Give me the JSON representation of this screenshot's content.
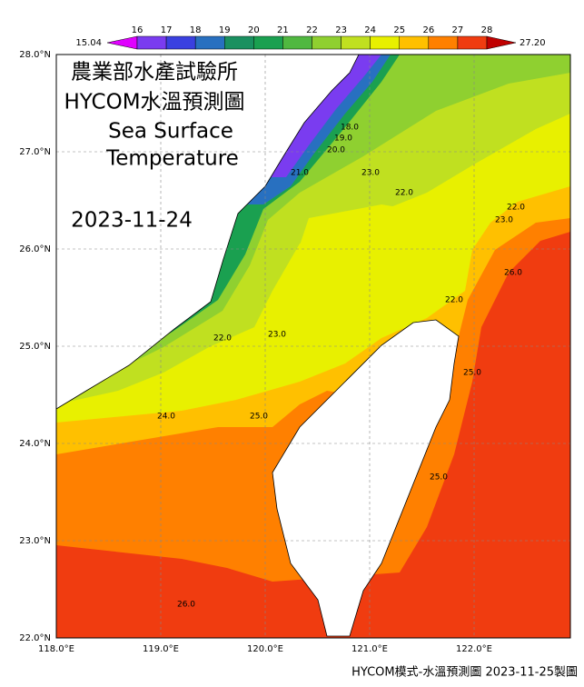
{
  "header": {
    "title_lines": [
      "農業部水產試驗所",
      "HYCOM水溫預測圖",
      "Sea Surface",
      "Temperature"
    ],
    "date": "2023-11-24"
  },
  "colorbar": {
    "levels": [
      16,
      17,
      18,
      19,
      20,
      21,
      22,
      23,
      24,
      25,
      26,
      27,
      28
    ],
    "min": 15.04,
    "max": {
      "value": 27.2,
      "label": "27.20"
    },
    "colors": [
      "#e000ff",
      "#7a3cf0",
      "#3a40e0",
      "#2870c0",
      "#1a9060",
      "#1aa050",
      "#50b840",
      "#8fd030",
      "#c0e020",
      "#e8f000",
      "#ffc000",
      "#ff8000",
      "#f03c10",
      "#c00000"
    ]
  },
  "axes": {
    "lat_ticks": [
      "28.0°N",
      "27.0°N",
      "26.0°N",
      "25.0°N",
      "24.0°N",
      "23.0°N",
      "22.0°N"
    ],
    "lon_ticks": [
      "118.0°E",
      "119.0°E",
      "120.0°E",
      "121.0°E",
      "122.0°E"
    ]
  },
  "contour_labels": [
    "21.0",
    "22.0",
    "23.0",
    "23.0",
    "22.0",
    "23.0",
    "22.0",
    "24.0",
    "25.0",
    "25.0",
    "26.0",
    "25.0",
    "26.0",
    "22.0",
    "20.0",
    "19.0",
    "18.0"
  ],
  "footer": "HYCOM模式-水溫預測圖 2023-11-25製圖"
}
